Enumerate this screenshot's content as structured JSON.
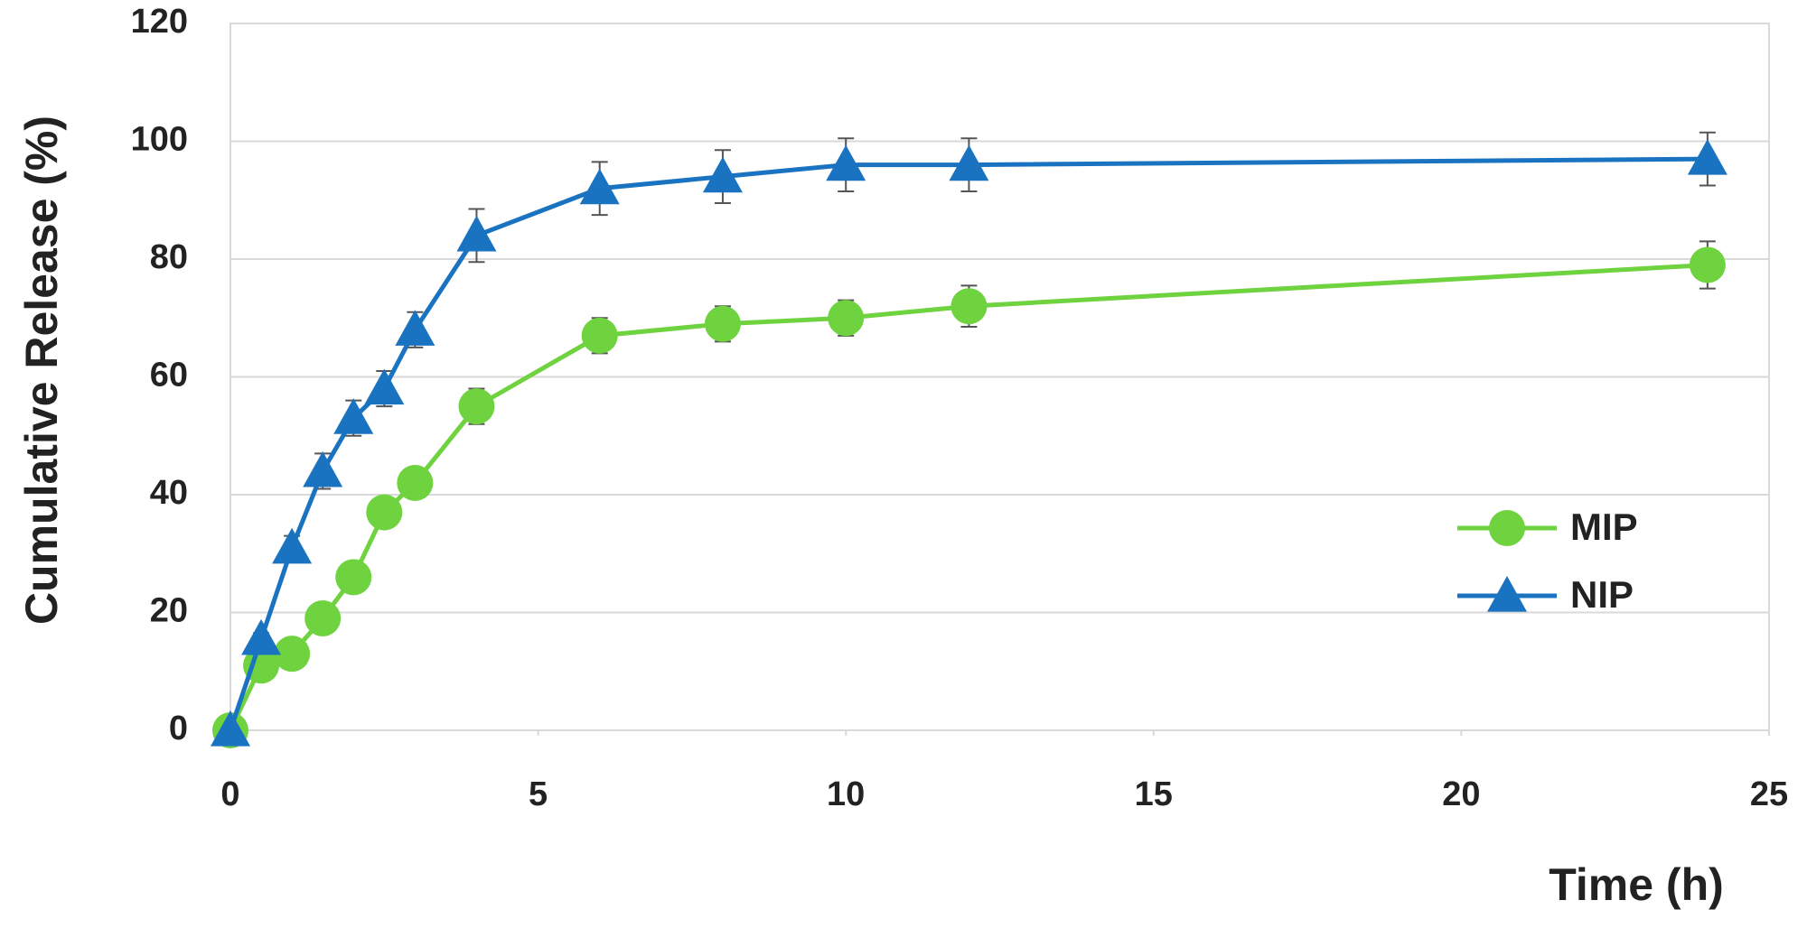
{
  "chart_data": {
    "type": "line",
    "x_label": "Time (h)",
    "y_label": "Cumulative Release (%)",
    "x": [
      0,
      0.5,
      1,
      1.5,
      2,
      2.5,
      3,
      4,
      6,
      8,
      10,
      12,
      24
    ],
    "series": [
      {
        "name": "MIP",
        "color": "#6fd23f",
        "marker": "circle",
        "values": [
          0,
          11,
          13,
          19,
          26,
          37,
          42,
          55,
          67,
          69,
          70,
          72,
          79
        ],
        "errors": [
          0,
          1,
          1,
          1.5,
          2,
          2,
          2,
          3,
          3,
          3,
          3,
          3.5,
          4
        ]
      },
      {
        "name": "NIP",
        "color": "#1a73c1",
        "marker": "triangle",
        "values": [
          0,
          15.5,
          31,
          44,
          53,
          58,
          68,
          84,
          92,
          94,
          96,
          96,
          97
        ],
        "errors": [
          0,
          1,
          2,
          3,
          3,
          3,
          3,
          4.5,
          4.5,
          4.5,
          4.5,
          4.5,
          4.5
        ]
      }
    ],
    "xlim": [
      0,
      25
    ],
    "xticks": [
      0,
      5,
      10,
      15,
      20,
      25
    ],
    "ylim": [
      0,
      120
    ],
    "yticks": [
      0,
      20,
      40,
      60,
      80,
      100,
      120
    ],
    "grid": true,
    "legend": "lower right"
  }
}
